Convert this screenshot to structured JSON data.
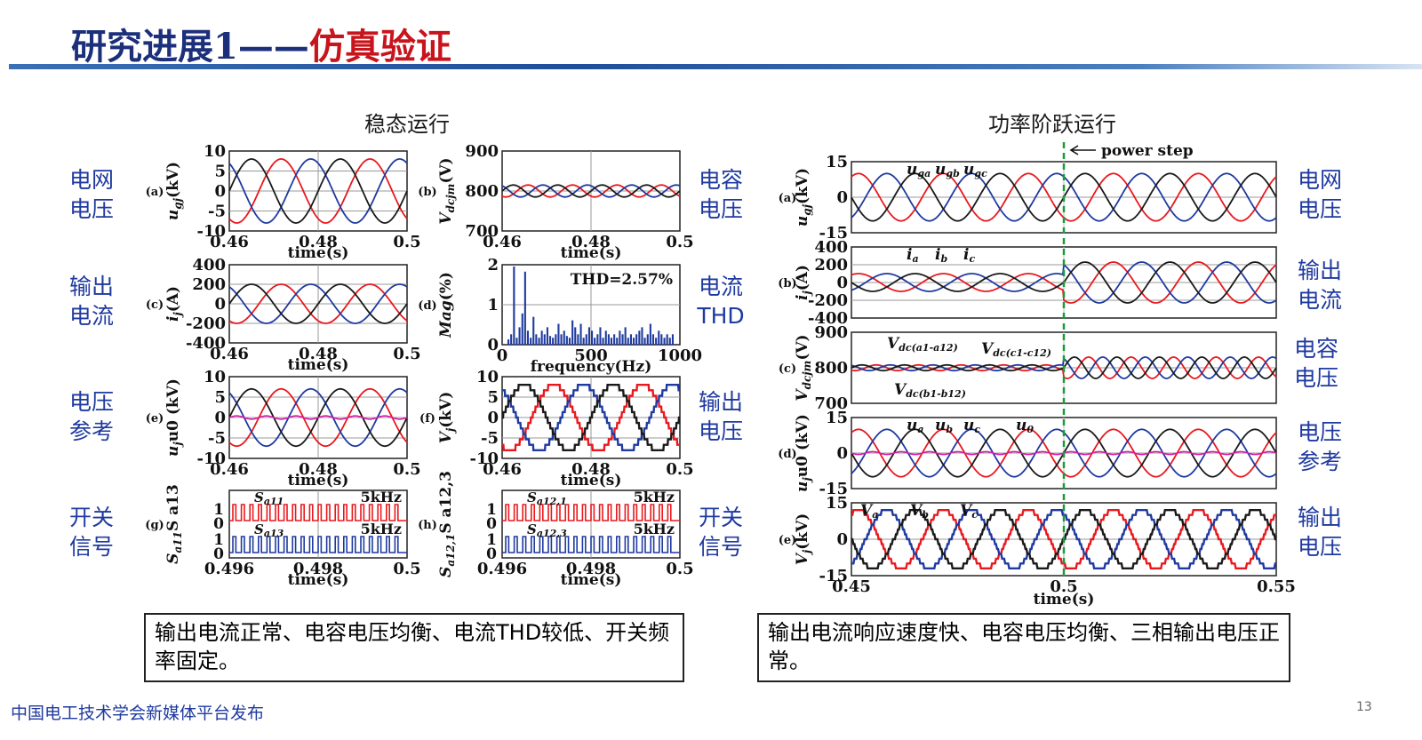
{
  "header": {
    "title_main": "研究进展1——",
    "title_accent": "仿真验证",
    "accent_color": "#c8141c",
    "main_color": "#1c2f7a"
  },
  "sections": {
    "left": "稳态运行",
    "right": "功率阶跃运行"
  },
  "side_labels": {
    "left": [
      "电网\n电压",
      "输出\n电流",
      "电压\n参考",
      "开关\n信号"
    ],
    "middle": [
      "电容\n电压",
      "电流\nTHD",
      "输出\n电压",
      "开关\n信号"
    ],
    "right": [
      "电网\n电压",
      "输出\n电流",
      "电容\n电压",
      "电压\n参考",
      "输出\n电压"
    ]
  },
  "summaries": {
    "left": "输出电流正常、电容电压均衡、电流THD较低、开关频率固定。",
    "right": "输出电流响应速度快、电容电压均衡、三相输出电压正常。"
  },
  "footer": {
    "publisher": "中国电工技术学会新媒体平台发布",
    "page_number": "13"
  },
  "chart_data": [
    {
      "id": "a",
      "type": "line",
      "panel_label": "(a)",
      "ylabel_main": "u",
      "ylabel_sub": "gj",
      "ylabel_unit": "(kV)",
      "xlabel": "time(s)",
      "xlim": [
        0.46,
        0.5
      ],
      "ylim": [
        -10,
        10
      ],
      "xticks": [
        "0.46",
        "0.48",
        "0.5"
      ],
      "yticks": [
        "10",
        "5",
        "0",
        "-5",
        "-10"
      ],
      "signal": {
        "kind": "sine",
        "amplitude": 8,
        "freq_hz": 50
      },
      "series_colors": [
        "#1a1a1a",
        "#e8191e",
        "#1f3aa0"
      ]
    },
    {
      "id": "b",
      "type": "line",
      "panel_label": "(b)",
      "ylabel_main": "V",
      "ylabel_sub": "dcjm",
      "ylabel_unit": "(V)",
      "xlabel": "time(s)",
      "xlim": [
        0.46,
        0.5
      ],
      "ylim": [
        700,
        900
      ],
      "xticks": [
        "0.46",
        "0.48",
        "0.5"
      ],
      "yticks": [
        "900",
        "800",
        "700"
      ],
      "signal": {
        "kind": "ripple",
        "mean": 800,
        "amplitude": 15,
        "freq_hz": 50
      },
      "series_colors": [
        "#1a1a1a",
        "#e8191e",
        "#1f3aa0"
      ]
    },
    {
      "id": "c",
      "type": "line",
      "panel_label": "(c)",
      "ylabel_main": "i",
      "ylabel_sub": "j",
      "ylabel_unit": "(A)",
      "xlabel": "time(s)",
      "xlim": [
        0.46,
        0.5
      ],
      "ylim": [
        -400,
        400
      ],
      "xticks": [
        "0.46",
        "0.48",
        "0.5"
      ],
      "yticks": [
        "400",
        "200",
        "0",
        "-200",
        "-400"
      ],
      "signal": {
        "kind": "sine",
        "amplitude": 200,
        "freq_hz": 50
      },
      "series_colors": [
        "#1a1a1a",
        "#e8191e",
        "#1f3aa0"
      ]
    },
    {
      "id": "d",
      "type": "bar",
      "panel_label": "(d)",
      "ylabel_main": "Mag",
      "ylabel_sub": "",
      "ylabel_unit": "(%)",
      "xlabel": "frequency(Hz)",
      "xlim": [
        0,
        1000
      ],
      "ylim": [
        0,
        2.3
      ],
      "xticks": [
        "0",
        "500",
        "1000"
      ],
      "yticks": [
        "2",
        "1",
        "0"
      ],
      "annotation": "THD=2.57%",
      "bar_color": "#1f3aa0",
      "values": [
        0.15,
        0.3,
        2.25,
        0.2,
        0.5,
        0.9,
        2.1,
        0.4,
        0.2,
        0.8,
        0.3,
        0.2,
        0.4,
        0.3,
        0.5,
        0.25,
        0.2,
        0.3,
        0.6,
        0.3,
        0.4,
        0.25,
        0.2,
        0.7,
        0.5,
        0.3,
        0.6,
        0.2,
        0.3,
        0.5,
        0.4,
        0.2,
        0.3,
        0.5,
        0.2,
        0.4,
        0.3,
        0.2,
        0.3,
        0.2,
        0.4,
        0.3,
        0.5,
        0.2,
        0.3,
        0.2,
        0.3,
        0.4,
        0.5,
        0.2,
        0.3,
        0.6,
        0.3,
        0.2,
        0.4,
        0.3,
        0.2,
        0.3,
        0.2,
        0.3
      ]
    },
    {
      "id": "e",
      "type": "line",
      "panel_label": "(e)",
      "ylabel_main": "u",
      "ylabel_sub": "j",
      "ylabel_unit": "u0 (kV)",
      "xlabel": "time(s)",
      "xlim": [
        0.46,
        0.5
      ],
      "ylim": [
        -10,
        10
      ],
      "xticks": [
        "0.46",
        "0.48",
        "0.5"
      ],
      "yticks": [
        "10",
        "5",
        "0",
        "-5",
        "-10"
      ],
      "signal": {
        "kind": "sine",
        "amplitude": 7,
        "freq_hz": 50
      },
      "zero_seq_color": "#d91aa8",
      "series_colors": [
        "#1a1a1a",
        "#e8191e",
        "#1f3aa0"
      ]
    },
    {
      "id": "f",
      "type": "line",
      "panel_label": "(f)",
      "ylabel_main": "V",
      "ylabel_sub": "j",
      "ylabel_unit": "(kV)",
      "xlabel": "time(s)",
      "xlim": [
        0.46,
        0.5
      ],
      "ylim": [
        -10,
        10
      ],
      "xticks": [
        "0.46",
        "0.48",
        "0.5"
      ],
      "yticks": [
        "10",
        "5",
        "0",
        "-5",
        "-10"
      ],
      "signal": {
        "kind": "staircase",
        "amplitude": 8,
        "freq_hz": 50,
        "levels": 12
      },
      "series_colors": [
        "#1a1a1a",
        "#e8191e",
        "#1f3aa0"
      ]
    },
    {
      "id": "g",
      "type": "pulse",
      "panel_label": "(g)",
      "ylabel_main": "S",
      "ylabel_sub": "a11",
      "ylabel_unit": "S a13",
      "xlabel": "time(s)",
      "xlim": [
        0.496,
        0.5
      ],
      "xticks": [
        "0.496",
        "0.498",
        "0.5"
      ],
      "tracks": [
        {
          "name": "S",
          "sub": "a11",
          "freq": "5kHz",
          "color": "#e8191e"
        },
        {
          "name": "S",
          "sub": "a13",
          "freq": "5kHz",
          "color": "#1f3aa0"
        }
      ]
    },
    {
      "id": "h",
      "type": "pulse",
      "panel_label": "(h)",
      "ylabel_main": "S",
      "ylabel_sub": "a12,1",
      "ylabel_unit": "S a12,3",
      "xlabel": "time(s)",
      "xlim": [
        0.496,
        0.5
      ],
      "xticks": [
        "0.496",
        "0.498",
        "0.5"
      ],
      "tracks": [
        {
          "name": "S",
          "sub": "a12,1",
          "freq": "5kHz",
          "color": "#e8191e"
        },
        {
          "name": "S",
          "sub": "a12,3",
          "freq": "5kHz",
          "color": "#1f3aa0"
        }
      ]
    },
    {
      "id": "ra",
      "type": "line",
      "panel_label": "(a)",
      "ylabel_main": "u",
      "ylabel_sub": "gj",
      "ylabel_unit": "(kV)",
      "xlim": [
        0.45,
        0.55
      ],
      "ylim": [
        -15,
        15
      ],
      "yticks": [
        "15",
        "0",
        "-15"
      ],
      "signal": {
        "kind": "sine",
        "amplitude": 10,
        "freq_hz": 50
      },
      "legend": [
        {
          "main": "u",
          "sub": "ga"
        },
        {
          "main": "u",
          "sub": "gb"
        },
        {
          "main": "u",
          "sub": "gc"
        }
      ],
      "annotation": "power step",
      "step_time": 0.5,
      "series_colors": [
        "#1a1a1a",
        "#e8191e",
        "#1f3aa0"
      ]
    },
    {
      "id": "rb",
      "type": "line",
      "panel_label": "(b)",
      "ylabel_main": "i",
      "ylabel_sub": "j",
      "ylabel_unit": "(A)",
      "xlim": [
        0.45,
        0.55
      ],
      "ylim": [
        -400,
        400
      ],
      "yticks": [
        "400",
        "200",
        "0",
        "-200",
        "-400"
      ],
      "signal": {
        "kind": "sine_step",
        "amplitude_before": 100,
        "amplitude_after": 230,
        "freq_hz": 50,
        "step_time": 0.5
      },
      "legend": [
        {
          "main": "i",
          "sub": "a"
        },
        {
          "main": "i",
          "sub": "b"
        },
        {
          "main": "i",
          "sub": "c"
        }
      ],
      "series_colors": [
        "#1a1a1a",
        "#e8191e",
        "#1f3aa0"
      ]
    },
    {
      "id": "rc",
      "type": "line",
      "panel_label": "(c)",
      "ylabel_main": "V",
      "ylabel_sub": "dcjm",
      "ylabel_unit": "(V)",
      "xlim": [
        0.45,
        0.55
      ],
      "ylim": [
        700,
        900
      ],
      "yticks": [
        "900",
        "800",
        "700"
      ],
      "signal": {
        "kind": "ripple_step",
        "mean": 800,
        "amplitude_before": 8,
        "amplitude_after": 30,
        "freq_hz": 50,
        "step_time": 0.5
      },
      "legend": [
        {
          "main": "V",
          "sub": "dc(a1-a12)"
        },
        {
          "main": "V",
          "sub": "dc(c1-c12)"
        },
        {
          "main": "V",
          "sub": "dc(b1-b12)"
        }
      ],
      "series_colors": [
        "#1a1a1a",
        "#e8191e",
        "#1f3aa0"
      ]
    },
    {
      "id": "rd",
      "type": "line",
      "panel_label": "(d)",
      "ylabel_main": "u",
      "ylabel_sub": "j",
      "ylabel_unit": "u0 (kV)",
      "xlim": [
        0.45,
        0.55
      ],
      "ylim": [
        -15,
        15
      ],
      "yticks": [
        "15",
        "0",
        "-15"
      ],
      "signal": {
        "kind": "sine",
        "amplitude": 10,
        "freq_hz": 50
      },
      "zero_seq_color": "#d91aa8",
      "legend": [
        {
          "main": "u",
          "sub": "a"
        },
        {
          "main": "u",
          "sub": "b"
        },
        {
          "main": "u",
          "sub": "c"
        },
        {
          "main": "u",
          "sub": "0"
        }
      ],
      "series_colors": [
        "#1a1a1a",
        "#e8191e",
        "#1f3aa0"
      ]
    },
    {
      "id": "re",
      "type": "line",
      "panel_label": "(e)",
      "ylabel_main": "V",
      "ylabel_sub": "j",
      "ylabel_unit": "(kV)",
      "xlabel": "time(s)",
      "xlim": [
        0.45,
        0.55
      ],
      "ylim": [
        -15,
        15
      ],
      "xticks": [
        "0.45",
        "0.5",
        "0.55"
      ],
      "yticks": [
        "15",
        "0",
        "-15"
      ],
      "signal": {
        "kind": "staircase",
        "amplitude": 12,
        "freq_hz": 50,
        "levels": 12
      },
      "legend": [
        {
          "main": "V",
          "sub": "a"
        },
        {
          "main": "V",
          "sub": "b"
        },
        {
          "main": "V",
          "sub": "c"
        }
      ],
      "series_colors": [
        "#1a1a1a",
        "#e8191e",
        "#1f3aa0"
      ]
    }
  ]
}
